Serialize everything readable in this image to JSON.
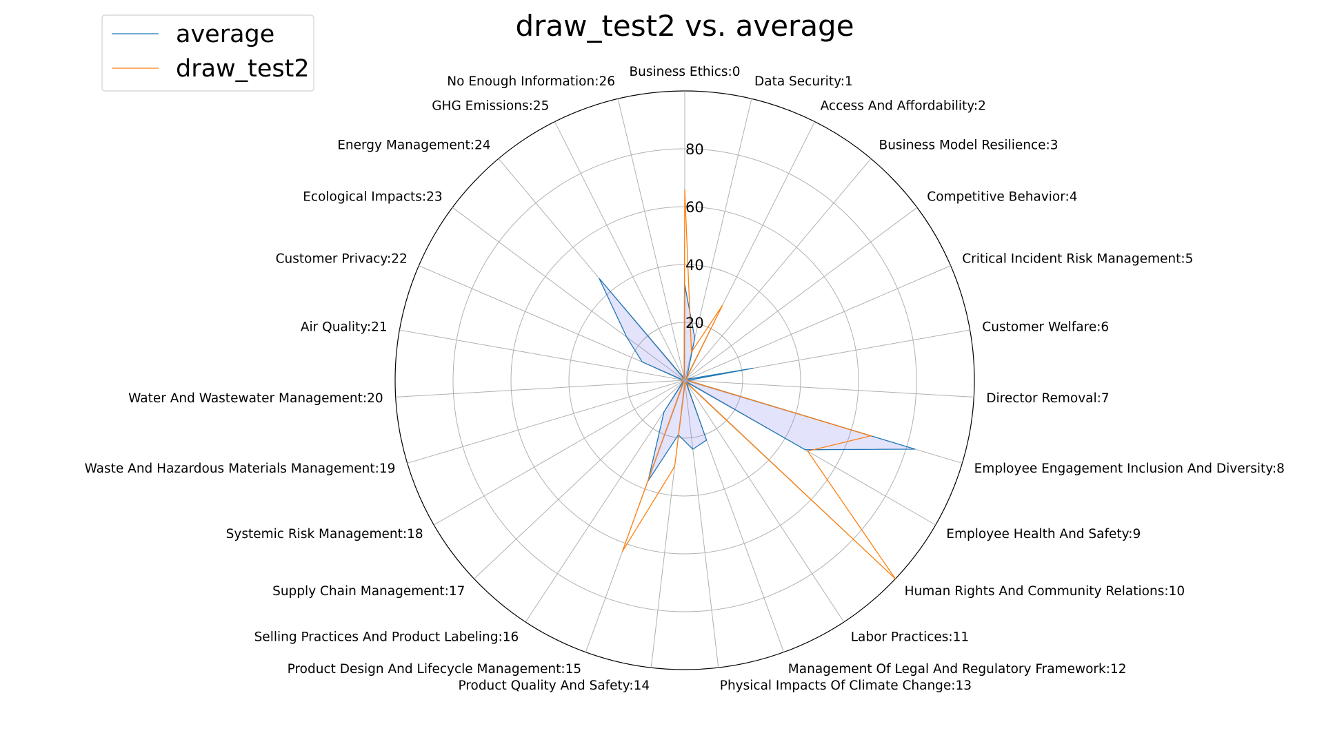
{
  "chart_data": {
    "type": "radar",
    "title": "draw_test2 vs. average",
    "categories": [
      "Business Ethics:0",
      "Data Security:1",
      "Access And Affordability:2",
      "Business Model Resilience:3",
      "Competitive Behavior:4",
      "Critical Incident Risk Management:5",
      "Customer Welfare:6",
      "Director Removal:7",
      "Employee Engagement Inclusion And Diversity:8",
      "Employee Health And Safety:9",
      "Human Rights And Community Relations:10",
      "Labor Practices:11",
      "Management Of Legal And Regulatory Framework:12",
      "Physical Impacts Of Climate Change:13",
      "Product Quality And Safety:14",
      "Product Design And Lifecycle Management:15",
      "Selling Practices And Product Labeling:16",
      "Supply Chain Management:17",
      "Systemic Risk Management:18",
      "Waste And Hazardous Materials Management:19",
      "Water And Wastewater Management:20",
      "Air Quality:21",
      "Customer Privacy:22",
      "Ecological Impacts:23",
      "Energy Management:24",
      "GHG Emissions:25",
      "No Enough Information:26"
    ],
    "series": [
      {
        "name": "average",
        "color": "#1f77b4",
        "fill": "#8080f0",
        "values": [
          33,
          15,
          2,
          1,
          1,
          1,
          24,
          1,
          83,
          48,
          1,
          1,
          22,
          24,
          19,
          37,
          13,
          1,
          1,
          1,
          1,
          1,
          16,
          25,
          46,
          1,
          1
        ]
      },
      {
        "name": "draw_test2",
        "color": "#ff7f0e",
        "values": [
          66,
          10,
          29,
          1,
          1,
          1,
          1,
          1,
          67,
          49,
          100,
          1,
          1,
          1,
          30,
          63,
          1,
          1,
          1,
          1,
          1,
          1,
          1,
          1,
          1,
          1,
          1
        ]
      }
    ],
    "rticks": [
      20,
      40,
      60,
      80
    ],
    "rlim": [
      0,
      100
    ],
    "grid": true,
    "legend_position": "top-left"
  }
}
